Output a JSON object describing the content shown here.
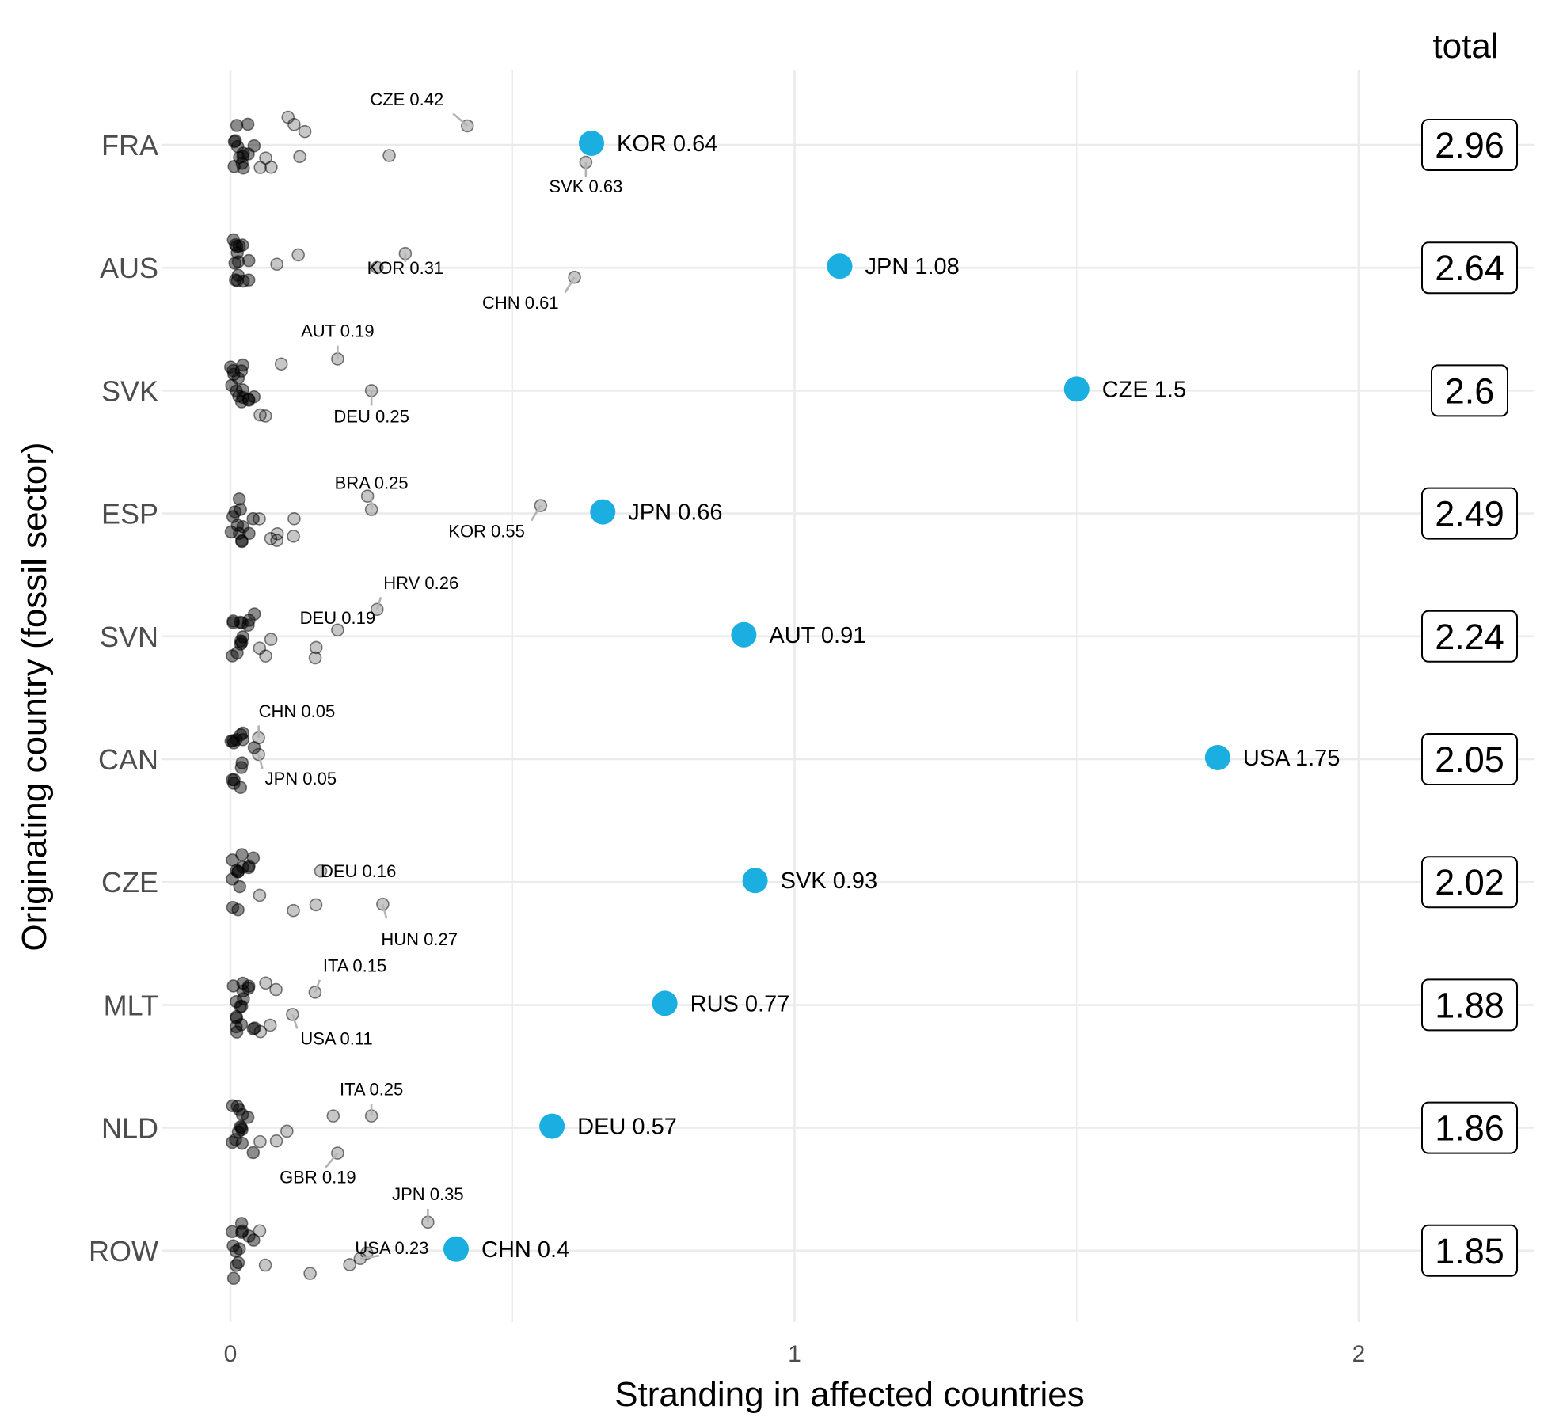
{
  "chart_data": {
    "type": "scatter",
    "xlabel": "Stranding in affected countries",
    "ylabel": "Originating country (fossil sector)",
    "total_header": "total",
    "xlim": [
      -0.1,
      2.2
    ],
    "xticks": [
      0,
      1,
      2
    ],
    "grid": true,
    "colors": {
      "highlight": "#1baee1",
      "background_point": "#000000",
      "leader": "#b3b3b3"
    },
    "rows": [
      {
        "country": "FRA",
        "total": "2.96",
        "highlight": {
          "label": "KOR 0.64",
          "value": 0.64
        },
        "labeled": [
          {
            "label": "CZE 0.42",
            "value": 0.42
          },
          {
            "label": "SVK 0.63",
            "value": 0.63
          }
        ],
        "others": [
          0.0,
          0.0,
          0.0,
          0.01,
          0.01,
          0.01,
          0.01,
          0.02,
          0.02,
          0.02,
          0.03,
          0.03,
          0.04,
          0.05,
          0.06,
          0.07,
          0.1,
          0.11,
          0.12,
          0.13,
          0.28
        ]
      },
      {
        "country": "AUS",
        "total": "2.64",
        "highlight": {
          "label": "JPN 1.08",
          "value": 1.08
        },
        "labeled": [
          {
            "label": "KOR 0.31",
            "value": 0.31
          },
          {
            "label": "CHN 0.61",
            "value": 0.61
          }
        ],
        "others": [
          0.0,
          0.0,
          0.0,
          0.0,
          0.01,
          0.01,
          0.01,
          0.01,
          0.01,
          0.01,
          0.02,
          0.02,
          0.03,
          0.03,
          0.08,
          0.12,
          0.26
        ]
      },
      {
        "country": "SVK",
        "total": "2.6",
        "highlight": {
          "label": "CZE 1.5",
          "value": 1.5
        },
        "labeled": [
          {
            "label": "AUT 0.19",
            "value": 0.19
          },
          {
            "label": "DEU 0.25",
            "value": 0.25
          }
        ],
        "others": [
          0.0,
          0.0,
          0.0,
          0.0,
          0.01,
          0.01,
          0.01,
          0.01,
          0.01,
          0.02,
          0.02,
          0.02,
          0.03,
          0.03,
          0.04,
          0.05,
          0.06,
          0.09
        ]
      },
      {
        "country": "ESP",
        "total": "2.49",
        "highlight": {
          "label": "JPN 0.66",
          "value": 0.66
        },
        "labeled": [
          {
            "label": "BRA 0.25",
            "value": 0.25
          },
          {
            "label": "KOR 0.55",
            "value": 0.55
          }
        ],
        "others": [
          0.0,
          0.0,
          0.0,
          0.01,
          0.01,
          0.01,
          0.01,
          0.02,
          0.02,
          0.02,
          0.03,
          0.04,
          0.05,
          0.07,
          0.08,
          0.08,
          0.11,
          0.11,
          0.24
        ]
      },
      {
        "country": "SVN",
        "total": "2.24",
        "highlight": {
          "label": "AUT 0.91",
          "value": 0.91
        },
        "labeled": [
          {
            "label": "HRV 0.26",
            "value": 0.26
          },
          {
            "label": "DEU 0.19",
            "value": 0.19
          }
        ],
        "others": [
          0.0,
          0.0,
          0.0,
          0.01,
          0.01,
          0.01,
          0.01,
          0.01,
          0.02,
          0.02,
          0.03,
          0.03,
          0.04,
          0.05,
          0.06,
          0.07,
          0.15,
          0.15
        ]
      },
      {
        "country": "CAN",
        "total": "2.05",
        "highlight": {
          "label": "USA 1.75",
          "value": 1.75
        },
        "labeled": [
          {
            "label": "CHN 0.05",
            "value": 0.05
          },
          {
            "label": "JPN 0.05",
            "value": 0.05
          }
        ],
        "others": [
          0.0,
          0.0,
          0.0,
          0.0,
          0.0,
          0.0,
          0.01,
          0.01,
          0.01,
          0.01,
          0.02,
          0.02,
          0.02,
          0.04
        ]
      },
      {
        "country": "CZE",
        "total": "2.02",
        "highlight": {
          "label": "SVK 0.93",
          "value": 0.93
        },
        "labeled": [
          {
            "label": "DEU 0.16",
            "value": 0.16
          },
          {
            "label": "HUN 0.27",
            "value": 0.27
          }
        ],
        "others": [
          0.0,
          0.0,
          0.0,
          0.0,
          0.01,
          0.01,
          0.01,
          0.01,
          0.02,
          0.02,
          0.03,
          0.03,
          0.04,
          0.05,
          0.11,
          0.15
        ]
      },
      {
        "country": "MLT",
        "total": "1.88",
        "highlight": {
          "label": "RUS 0.77",
          "value": 0.77
        },
        "labeled": [
          {
            "label": "ITA 0.15",
            "value": 0.15
          },
          {
            "label": "USA 0.11",
            "value": 0.11
          }
        ],
        "others": [
          0.0,
          0.0,
          0.0,
          0.0,
          0.01,
          0.01,
          0.01,
          0.01,
          0.01,
          0.02,
          0.02,
          0.02,
          0.03,
          0.03,
          0.04,
          0.04,
          0.05,
          0.06,
          0.07,
          0.08
        ]
      },
      {
        "country": "NLD",
        "total": "1.86",
        "highlight": {
          "label": "DEU 0.57",
          "value": 0.57
        },
        "labeled": [
          {
            "label": "ITA 0.25",
            "value": 0.25
          },
          {
            "label": "GBR 0.19",
            "value": 0.19
          }
        ],
        "others": [
          0.0,
          0.0,
          0.0,
          0.01,
          0.01,
          0.01,
          0.01,
          0.01,
          0.02,
          0.02,
          0.02,
          0.03,
          0.04,
          0.05,
          0.08,
          0.1,
          0.18
        ]
      },
      {
        "country": "ROW",
        "total": "1.85",
        "highlight": {
          "label": "CHN 0.4",
          "value": 0.4
        },
        "labeled": [
          {
            "label": "JPN 0.35",
            "value": 0.35
          },
          {
            "label": "USA 0.23",
            "value": 0.23
          }
        ],
        "others": [
          0.0,
          0.0,
          0.0,
          0.0,
          0.01,
          0.01,
          0.01,
          0.01,
          0.02,
          0.02,
          0.03,
          0.04,
          0.05,
          0.06,
          0.14,
          0.21,
          0.24
        ]
      }
    ]
  }
}
